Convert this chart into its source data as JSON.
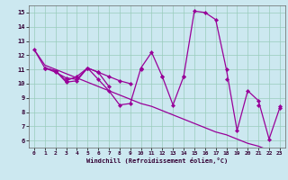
{
  "xlabel": "Windchill (Refroidissement éolien,°C)",
  "background_color": "#cce8f0",
  "line_color": "#990099",
  "grid_color": "#99ccbb",
  "xlim": [
    -0.5,
    23.5
  ],
  "ylim": [
    5.5,
    15.5
  ],
  "yticks": [
    6,
    7,
    8,
    9,
    10,
    11,
    12,
    13,
    14,
    15
  ],
  "xticks": [
    0,
    1,
    2,
    3,
    4,
    5,
    6,
    7,
    8,
    9,
    10,
    11,
    12,
    13,
    14,
    15,
    16,
    17,
    18,
    19,
    20,
    21,
    22,
    23
  ],
  "line1": [
    12.4,
    11.1,
    10.9,
    10.1,
    10.2,
    11.1,
    10.3,
    9.5,
    8.5,
    8.6,
    11.1,
    12.2,
    10.5,
    8.5,
    10.5,
    15.1,
    15.0,
    14.5,
    11.0,
    6.7,
    9.5,
    8.8,
    6.1,
    8.3
  ],
  "line2": [
    null,
    11.1,
    10.9,
    10.2,
    10.5,
    11.1,
    10.8,
    9.8,
    null,
    null,
    11.0,
    null,
    10.5,
    null,
    10.5,
    null,
    null,
    null,
    10.3,
    null,
    null,
    8.5,
    null,
    8.4
  ],
  "line3": [
    null,
    11.1,
    10.8,
    10.4,
    10.3,
    11.1,
    10.8,
    10.5,
    10.2,
    10.0,
    null,
    null,
    null,
    null,
    null,
    null,
    null,
    null,
    null,
    null,
    null,
    null,
    null,
    null
  ],
  "line4": [
    12.4,
    11.3,
    11.0,
    10.7,
    10.4,
    10.1,
    9.8,
    9.5,
    9.2,
    8.9,
    8.6,
    8.4,
    8.1,
    7.8,
    7.5,
    7.2,
    6.9,
    6.6,
    6.4,
    6.1,
    5.8,
    5.6,
    5.3,
    5.0
  ]
}
